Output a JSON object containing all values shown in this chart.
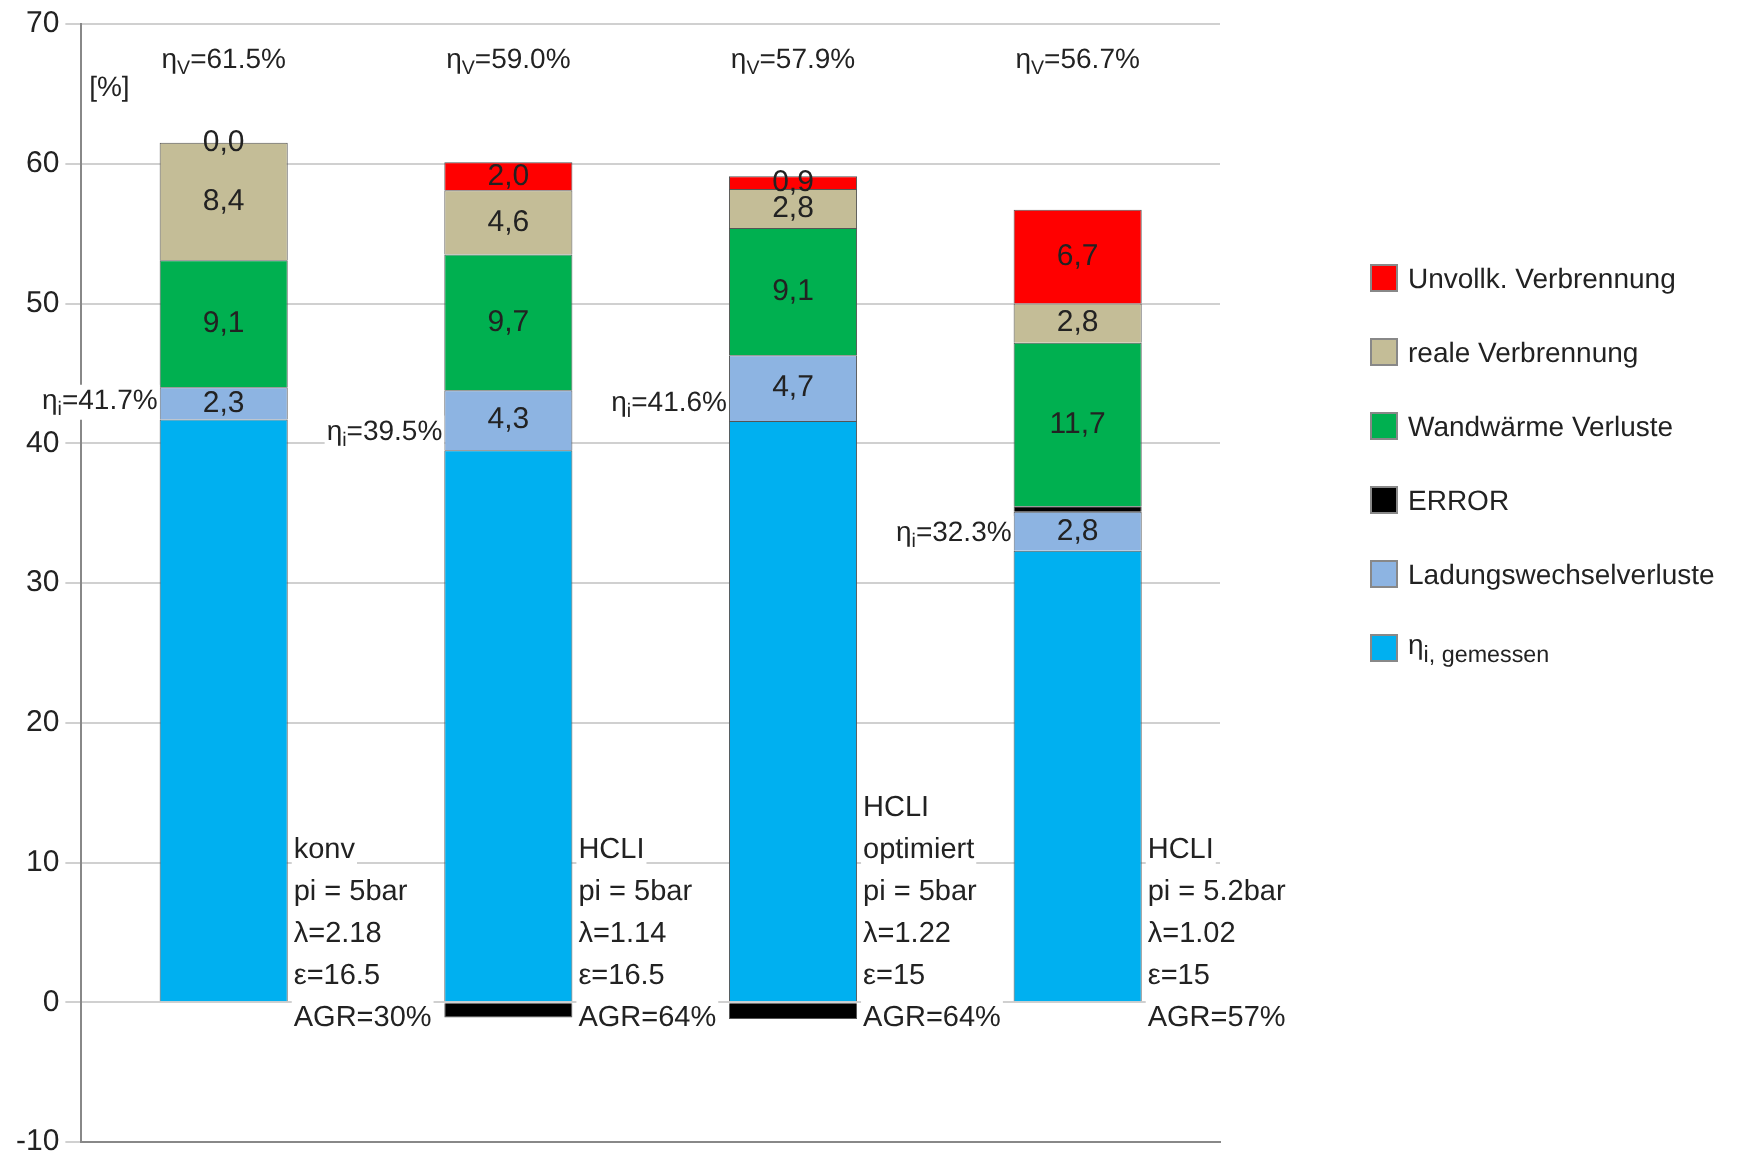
{
  "chart_data": {
    "type": "bar",
    "stacked": true,
    "ylabel": "[%]",
    "categories": [
      null,
      null,
      null,
      null
    ],
    "series": [
      {
        "name": "η$_{i, gemessen}$",
        "color": "#00b0f0",
        "values": [
          41.7,
          39.5,
          41.6,
          32.3
        ]
      },
      {
        "name": "Ladungswechselverluste",
        "color": "#8db4e2",
        "values": [
          2.3,
          4.3,
          4.7,
          2.8
        ],
        "value_labels": [
          "2,3",
          "4,3",
          "4,7",
          "2,8"
        ]
      },
      {
        "name": "ERROR",
        "color": "#000000",
        "values": [
          0,
          -1.1,
          -1.2,
          0.4
        ]
      },
      {
        "name": "Wandwärme Verluste",
        "color": "#00b050",
        "values": [
          9.1,
          9.7,
          9.1,
          11.7
        ],
        "value_labels": [
          "9,1",
          "9,7",
          "9,1",
          "11,7"
        ]
      },
      {
        "name": "reale Verbrennung",
        "color": "#c4bd97",
        "values": [
          8.4,
          4.6,
          2.8,
          2.8
        ],
        "value_labels": [
          "8,4",
          "4,6",
          "2,8",
          "2,8"
        ]
      },
      {
        "name": "Unvollk. Verbrennung",
        "color": "#ff0000",
        "values": [
          0.0,
          2.0,
          0.9,
          6.7
        ],
        "value_labels": [
          "0,0",
          "2,0",
          "0,9",
          "6,7"
        ]
      }
    ],
    "ylim": [
      -10,
      70
    ],
    "yticks": [
      -10,
      0,
      10,
      20,
      30,
      40,
      50,
      60,
      70
    ],
    "grid": "y",
    "tick_labels": "y",
    "legend": "right",
    "annotations": [
      "η$_{V}$=61.5%",
      "η$_{V}$=59.0%",
      "η$_{V}$=57.9%",
      "η$_{V}$=56.7%",
      "η$_{i}$=41.7%",
      "η$_{i}$=39.5%",
      "η$_{i}$=41.6%",
      "η$_{i}$=32.3%",
      "konv\npi = 5bar\nλ=2.18\nε=16.5\nAGR=30%",
      "HCLI\npi = 5bar\nλ=1.14\nε=16.5\nAGR=64%",
      "HCLI\noptimiert\npi = 5bar\nλ=1.22\nε=15\nAGR=64%",
      "HCLI\npi = 5.2bar\nλ=1.02\nε=15\nAGR=57%"
    ]
  }
}
